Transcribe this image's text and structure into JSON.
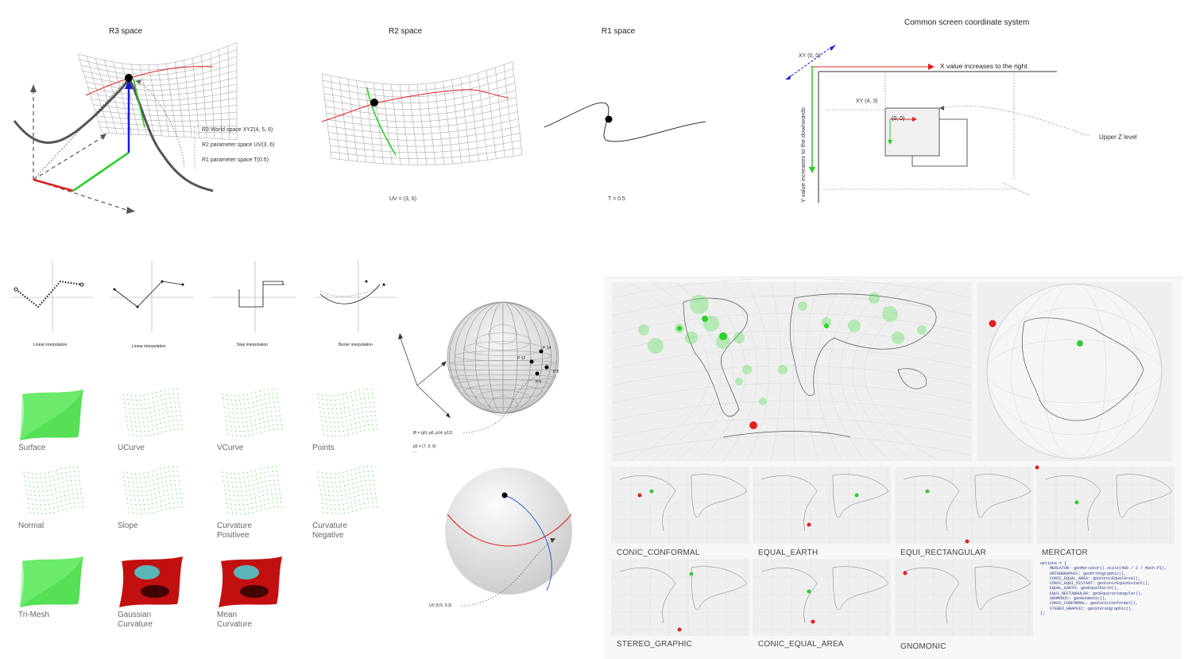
{
  "top": {
    "r3_title": "R3 space",
    "r2_title": "R2 space",
    "r1_title": "R1 space",
    "legend": [
      "R3 World space  XYZ(4, 5, 6)",
      "R2 parameter space  UV(3, 6)",
      "R1 parameter space T(0.5)"
    ],
    "uv_caption": "UV = (3, 6)",
    "t_caption": "T = 0.5"
  },
  "coord": {
    "title": "Common screen coordinate system",
    "origin": "XY (0, 0)",
    "x_axis": "X value increases to the right",
    "y_axis": "Y value increases to the downwards",
    "point": "XY (4, 3)",
    "local_origin": "(0, 0)",
    "z_level": "Upper Z level"
  },
  "interp": [
    "Linear interpolation",
    "Linear interpolation",
    "Step interpolation",
    "Bezier interpolation"
  ],
  "gallery": [
    {
      "label": "Surface",
      "kind": "surface"
    },
    {
      "label": "UCurve",
      "kind": "dots"
    },
    {
      "label": "VCurve",
      "kind": "dots"
    },
    {
      "label": "Points",
      "kind": "dots"
    },
    {
      "label": "Normal",
      "kind": "dots"
    },
    {
      "label": "Slope",
      "kind": "dots"
    },
    {
      "label": "Curvature Positivee",
      "kind": "dots"
    },
    {
      "label": "Curvature Negative",
      "kind": "dots"
    },
    {
      "label": "Tri-Mesh",
      "kind": "surface"
    },
    {
      "label": "Gaussian Curvature",
      "kind": "heat"
    },
    {
      "label": "Mean Curvature",
      "kind": "heat"
    }
  ],
  "sphere": {
    "points": [
      "P 14",
      "P 12",
      "P 6",
      "P 5"
    ],
    "face_label": "f8 = (p5, p6, p14, p12)",
    "vertex_label": "p5 = (7, 5, 9)",
    "ellipsis": "...",
    "uv_label": "UV (0.5, 0.3)"
  },
  "projections": [
    "CONIC_CONFORMAL",
    "EQUAL_EARTH",
    "EQUI_RECTANGULAR",
    "MERCATOR",
    "STEREO_GRAPHIC",
    "CONIC_EQUAL_AREA",
    "GNOMONIC"
  ],
  "code_lines": [
    "options = {",
    "    MERCATOR: geoMercator().scale(490 / 2 / Math.PI),",
    "    ORTHOGRAPHIC: geoOrthographic(),",
    "    CONIC_EQUAL_AREA: geoConicEqualArea(),",
    "    CONIC_EQUI_DISTANT: geoConicEquidistant(),",
    "    EQUAL_EARTH: geoEqualEarth(),",
    "    EQUI_RECTANGULAR: geoEquirectangular(),",
    "    GNOMONIC: geoGnomonic(),",
    "    CONIC_CONFORMAL: geoConicConformal(),",
    "    STEREO_GRAPHIC: geoStereographic(),",
    "};"
  ],
  "colors": {
    "red": "#e02020",
    "green": "#22cc22",
    "blue": "#1a1ad0",
    "surface_green": "#55e055",
    "map_bg": "#efefef"
  }
}
